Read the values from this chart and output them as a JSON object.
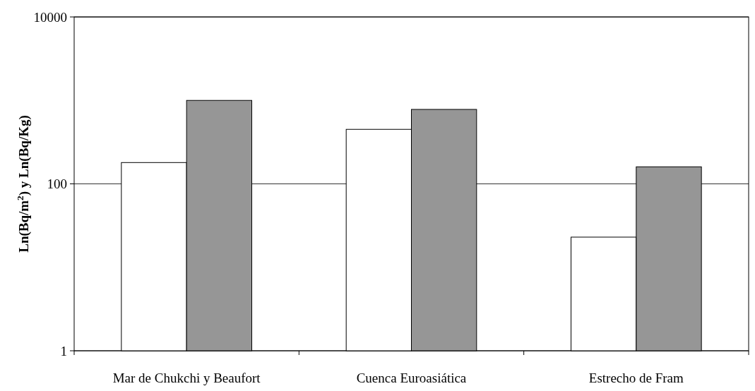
{
  "chart_data": {
    "type": "bar",
    "ylabel": "Ln(Bq/m$^{2}$) y Ln(Bq/Kg)",
    "categories": [
      "Mar de Chukchi y Beaufort",
      "Cuenca Euroasiática",
      "Estrecho de Fram"
    ],
    "series": [
      {
        "color": "#ffffff",
        "values": [
          180,
          450,
          23
        ]
      },
      {
        "color": "#969696",
        "values": [
          1000,
          780,
          160
        ]
      }
    ],
    "log": true,
    "ylim": [
      1,
      10000
    ],
    "yticks": [
      1,
      100,
      10000
    ],
    "grid": "y"
  }
}
